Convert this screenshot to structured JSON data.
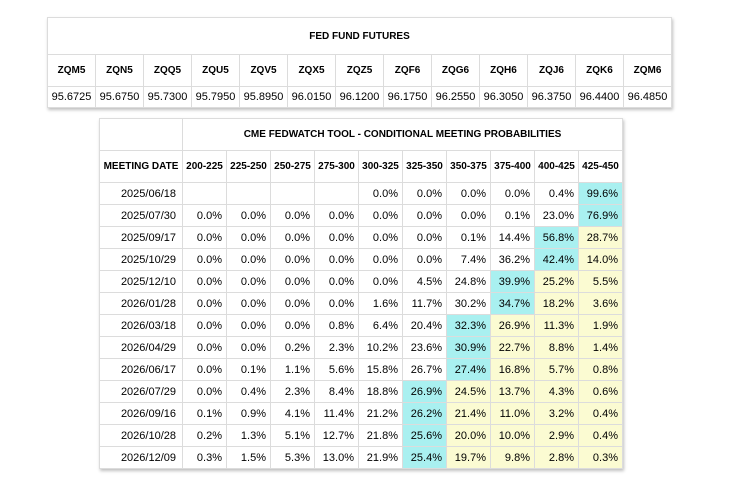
{
  "futures": {
    "title": "FED FUND FUTURES",
    "contracts": [
      {
        "code": "ZQM5",
        "price": "95.6725"
      },
      {
        "code": "ZQN5",
        "price": "95.6750"
      },
      {
        "code": "ZQQ5",
        "price": "95.7300"
      },
      {
        "code": "ZQU5",
        "price": "95.7950"
      },
      {
        "code": "ZQV5",
        "price": "95.8950"
      },
      {
        "code": "ZQX5",
        "price": "96.0150"
      },
      {
        "code": "ZQZ5",
        "price": "96.1200"
      },
      {
        "code": "ZQF6",
        "price": "96.1750"
      },
      {
        "code": "ZQG6",
        "price": "96.2550"
      },
      {
        "code": "ZQH6",
        "price": "96.3050"
      },
      {
        "code": "ZQJ6",
        "price": "96.3750"
      },
      {
        "code": "ZQK6",
        "price": "96.4400"
      },
      {
        "code": "ZQM6",
        "price": "96.4850"
      }
    ]
  },
  "fedwatch": {
    "title": "CME FEDWATCH TOOL - CONDITIONAL MEETING PROBABILITIES",
    "date_header": "MEETING DATE",
    "ranges": [
      "200-225",
      "225-250",
      "250-275",
      "275-300",
      "300-325",
      "325-350",
      "350-375",
      "375-400",
      "400-425",
      "425-450"
    ],
    "colors": {
      "highlight": "#a9f0f0",
      "shaded": "#fbfbd2"
    },
    "rows": [
      {
        "date": "2025/06/18",
        "probs": [
          "",
          "",
          "",
          "",
          "0.0%",
          "0.0%",
          "0.0%",
          "0.0%",
          "0.4%",
          "99.6%"
        ],
        "max": 9,
        "shade_from": 9
      },
      {
        "date": "2025/07/30",
        "probs": [
          "0.0%",
          "0.0%",
          "0.0%",
          "0.0%",
          "0.0%",
          "0.0%",
          "0.0%",
          "0.1%",
          "23.0%",
          "76.9%"
        ],
        "max": 9,
        "shade_from": 9
      },
      {
        "date": "2025/09/17",
        "probs": [
          "0.0%",
          "0.0%",
          "0.0%",
          "0.0%",
          "0.0%",
          "0.0%",
          "0.1%",
          "14.4%",
          "56.8%",
          "28.7%"
        ],
        "max": 8,
        "shade_from": 9
      },
      {
        "date": "2025/10/29",
        "probs": [
          "0.0%",
          "0.0%",
          "0.0%",
          "0.0%",
          "0.0%",
          "0.0%",
          "7.4%",
          "36.2%",
          "42.4%",
          "14.0%"
        ],
        "max": 8,
        "shade_from": 9
      },
      {
        "date": "2025/12/10",
        "probs": [
          "0.0%",
          "0.0%",
          "0.0%",
          "0.0%",
          "0.0%",
          "4.5%",
          "24.8%",
          "39.9%",
          "25.2%",
          "5.5%"
        ],
        "max": 7,
        "shade_from": 8
      },
      {
        "date": "2026/01/28",
        "probs": [
          "0.0%",
          "0.0%",
          "0.0%",
          "0.0%",
          "1.6%",
          "11.7%",
          "30.2%",
          "34.7%",
          "18.2%",
          "3.6%"
        ],
        "max": 7,
        "shade_from": 8
      },
      {
        "date": "2026/03/18",
        "probs": [
          "0.0%",
          "0.0%",
          "0.0%",
          "0.8%",
          "6.4%",
          "20.4%",
          "32.3%",
          "26.9%",
          "11.3%",
          "1.9%"
        ],
        "max": 6,
        "shade_from": 7
      },
      {
        "date": "2026/04/29",
        "probs": [
          "0.0%",
          "0.0%",
          "0.2%",
          "2.3%",
          "10.2%",
          "23.6%",
          "30.9%",
          "22.7%",
          "8.8%",
          "1.4%"
        ],
        "max": 6,
        "shade_from": 7
      },
      {
        "date": "2026/06/17",
        "probs": [
          "0.0%",
          "0.1%",
          "1.1%",
          "5.6%",
          "15.8%",
          "26.7%",
          "27.4%",
          "16.8%",
          "5.7%",
          "0.8%"
        ],
        "max": 6,
        "shade_from": 7
      },
      {
        "date": "2026/07/29",
        "probs": [
          "0.0%",
          "0.4%",
          "2.3%",
          "8.4%",
          "18.8%",
          "26.9%",
          "24.5%",
          "13.7%",
          "4.3%",
          "0.6%"
        ],
        "max": 5,
        "shade_from": 6
      },
      {
        "date": "2026/09/16",
        "probs": [
          "0.1%",
          "0.9%",
          "4.1%",
          "11.4%",
          "21.2%",
          "26.2%",
          "21.4%",
          "11.0%",
          "3.2%",
          "0.4%"
        ],
        "max": 5,
        "shade_from": 6
      },
      {
        "date": "2026/10/28",
        "probs": [
          "0.2%",
          "1.3%",
          "5.1%",
          "12.7%",
          "21.8%",
          "25.6%",
          "20.0%",
          "10.0%",
          "2.9%",
          "0.4%"
        ],
        "max": 5,
        "shade_from": 6
      },
      {
        "date": "2026/12/09",
        "probs": [
          "0.3%",
          "1.5%",
          "5.3%",
          "13.0%",
          "21.9%",
          "25.4%",
          "19.7%",
          "9.8%",
          "2.8%",
          "0.3%"
        ],
        "max": 5,
        "shade_from": 6
      }
    ]
  }
}
